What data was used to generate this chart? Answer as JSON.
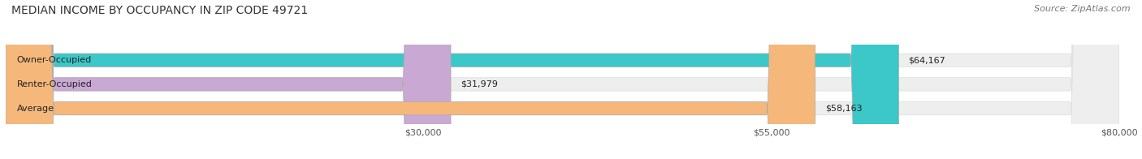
{
  "title": "MEDIAN INCOME BY OCCUPANCY IN ZIP CODE 49721",
  "source": "Source: ZipAtlas.com",
  "categories": [
    "Owner-Occupied",
    "Renter-Occupied",
    "Average"
  ],
  "values": [
    64167,
    31979,
    58163
  ],
  "labels": [
    "$64,167",
    "$31,979",
    "$58,163"
  ],
  "bar_colors": [
    "#3cc8c8",
    "#c9a8d4",
    "#f5b87a"
  ],
  "bg_color": "#eeeeee",
  "xlim": [
    0,
    80000
  ],
  "xticks": [
    30000,
    55000,
    80000
  ],
  "xticklabels": [
    "$30,000",
    "$55,000",
    "$80,000"
  ],
  "title_fontsize": 10,
  "source_fontsize": 8,
  "label_fontsize": 8,
  "category_fontsize": 8,
  "bar_height": 0.55,
  "fig_width": 14.06,
  "fig_height": 1.96
}
